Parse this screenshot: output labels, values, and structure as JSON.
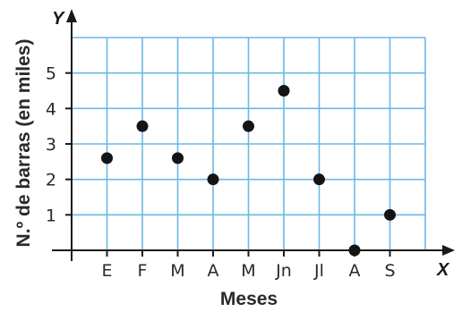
{
  "chart_data": {
    "type": "scatter",
    "categories": [
      "E",
      "F",
      "M",
      "A",
      "M",
      "Jn",
      "Jl",
      "A",
      "S"
    ],
    "values": [
      2.6,
      3.5,
      2.6,
      2.0,
      3.5,
      4.5,
      2.0,
      0,
      1.0
    ],
    "xlabel": "Meses",
    "ylabel": "N.º de barras (en miles)",
    "x_axis_name": "X",
    "y_axis_name": "Y",
    "yticks": [
      "1",
      "2",
      "3",
      "4",
      "5"
    ],
    "ylim": [
      0,
      6
    ],
    "grid": true,
    "point_color": "#141414",
    "grid_color": "#6cb7e6"
  }
}
